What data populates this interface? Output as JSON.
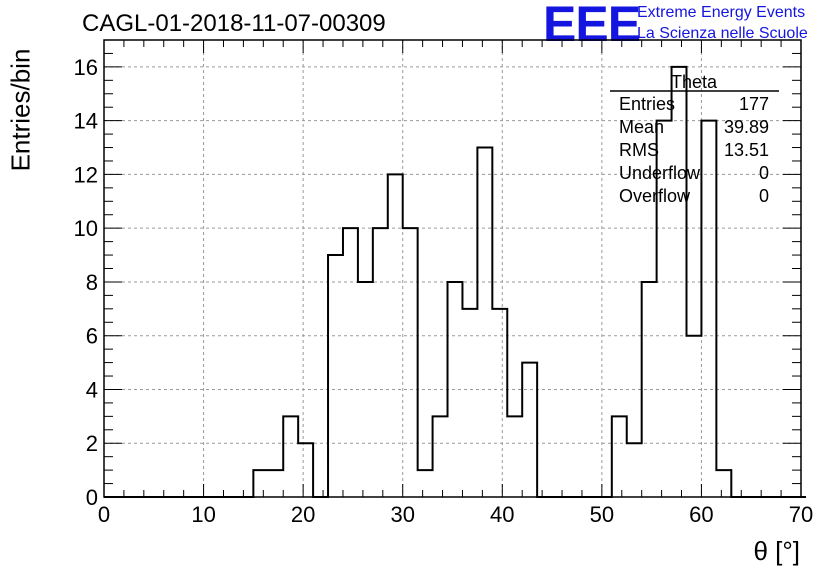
{
  "title": "CAGL-01-2018-11-07-00309",
  "logo": {
    "text": "EEE",
    "line1": "Extreme Energy Events",
    "line2": "La Scienza nelle Scuole",
    "color": "#1515e0"
  },
  "stats_box": {
    "name": "Theta",
    "rows": [
      {
        "label": "Entries",
        "value": "177"
      },
      {
        "label": "Mean",
        "value": "39.89"
      },
      {
        "label": "RMS",
        "value": "13.51"
      },
      {
        "label": "Underflow",
        "value": "0"
      },
      {
        "label": "Overflow",
        "value": "0"
      }
    ]
  },
  "chart_data": {
    "type": "histogram",
    "xlabel": "θ [°]",
    "ylabel": "Entries/bin",
    "xlim": [
      0,
      70
    ],
    "ylim": [
      0,
      17
    ],
    "xticks": [
      0,
      10,
      20,
      30,
      40,
      50,
      60,
      70
    ],
    "yticks": [
      0,
      2,
      4,
      6,
      8,
      10,
      12,
      14,
      16
    ],
    "grid": true,
    "bin_width": 1.5,
    "bin_start": 0,
    "values": [
      0,
      0,
      0,
      0,
      0,
      0,
      0,
      0,
      0,
      0,
      1,
      1,
      3,
      2,
      0,
      9,
      10,
      8,
      10,
      12,
      10,
      1,
      3,
      8,
      7,
      13,
      7,
      3,
      5,
      0,
      0,
      0,
      0,
      0,
      3,
      2,
      8,
      14,
      16,
      6,
      14,
      1,
      0,
      0,
      0,
      0,
      0
    ]
  }
}
